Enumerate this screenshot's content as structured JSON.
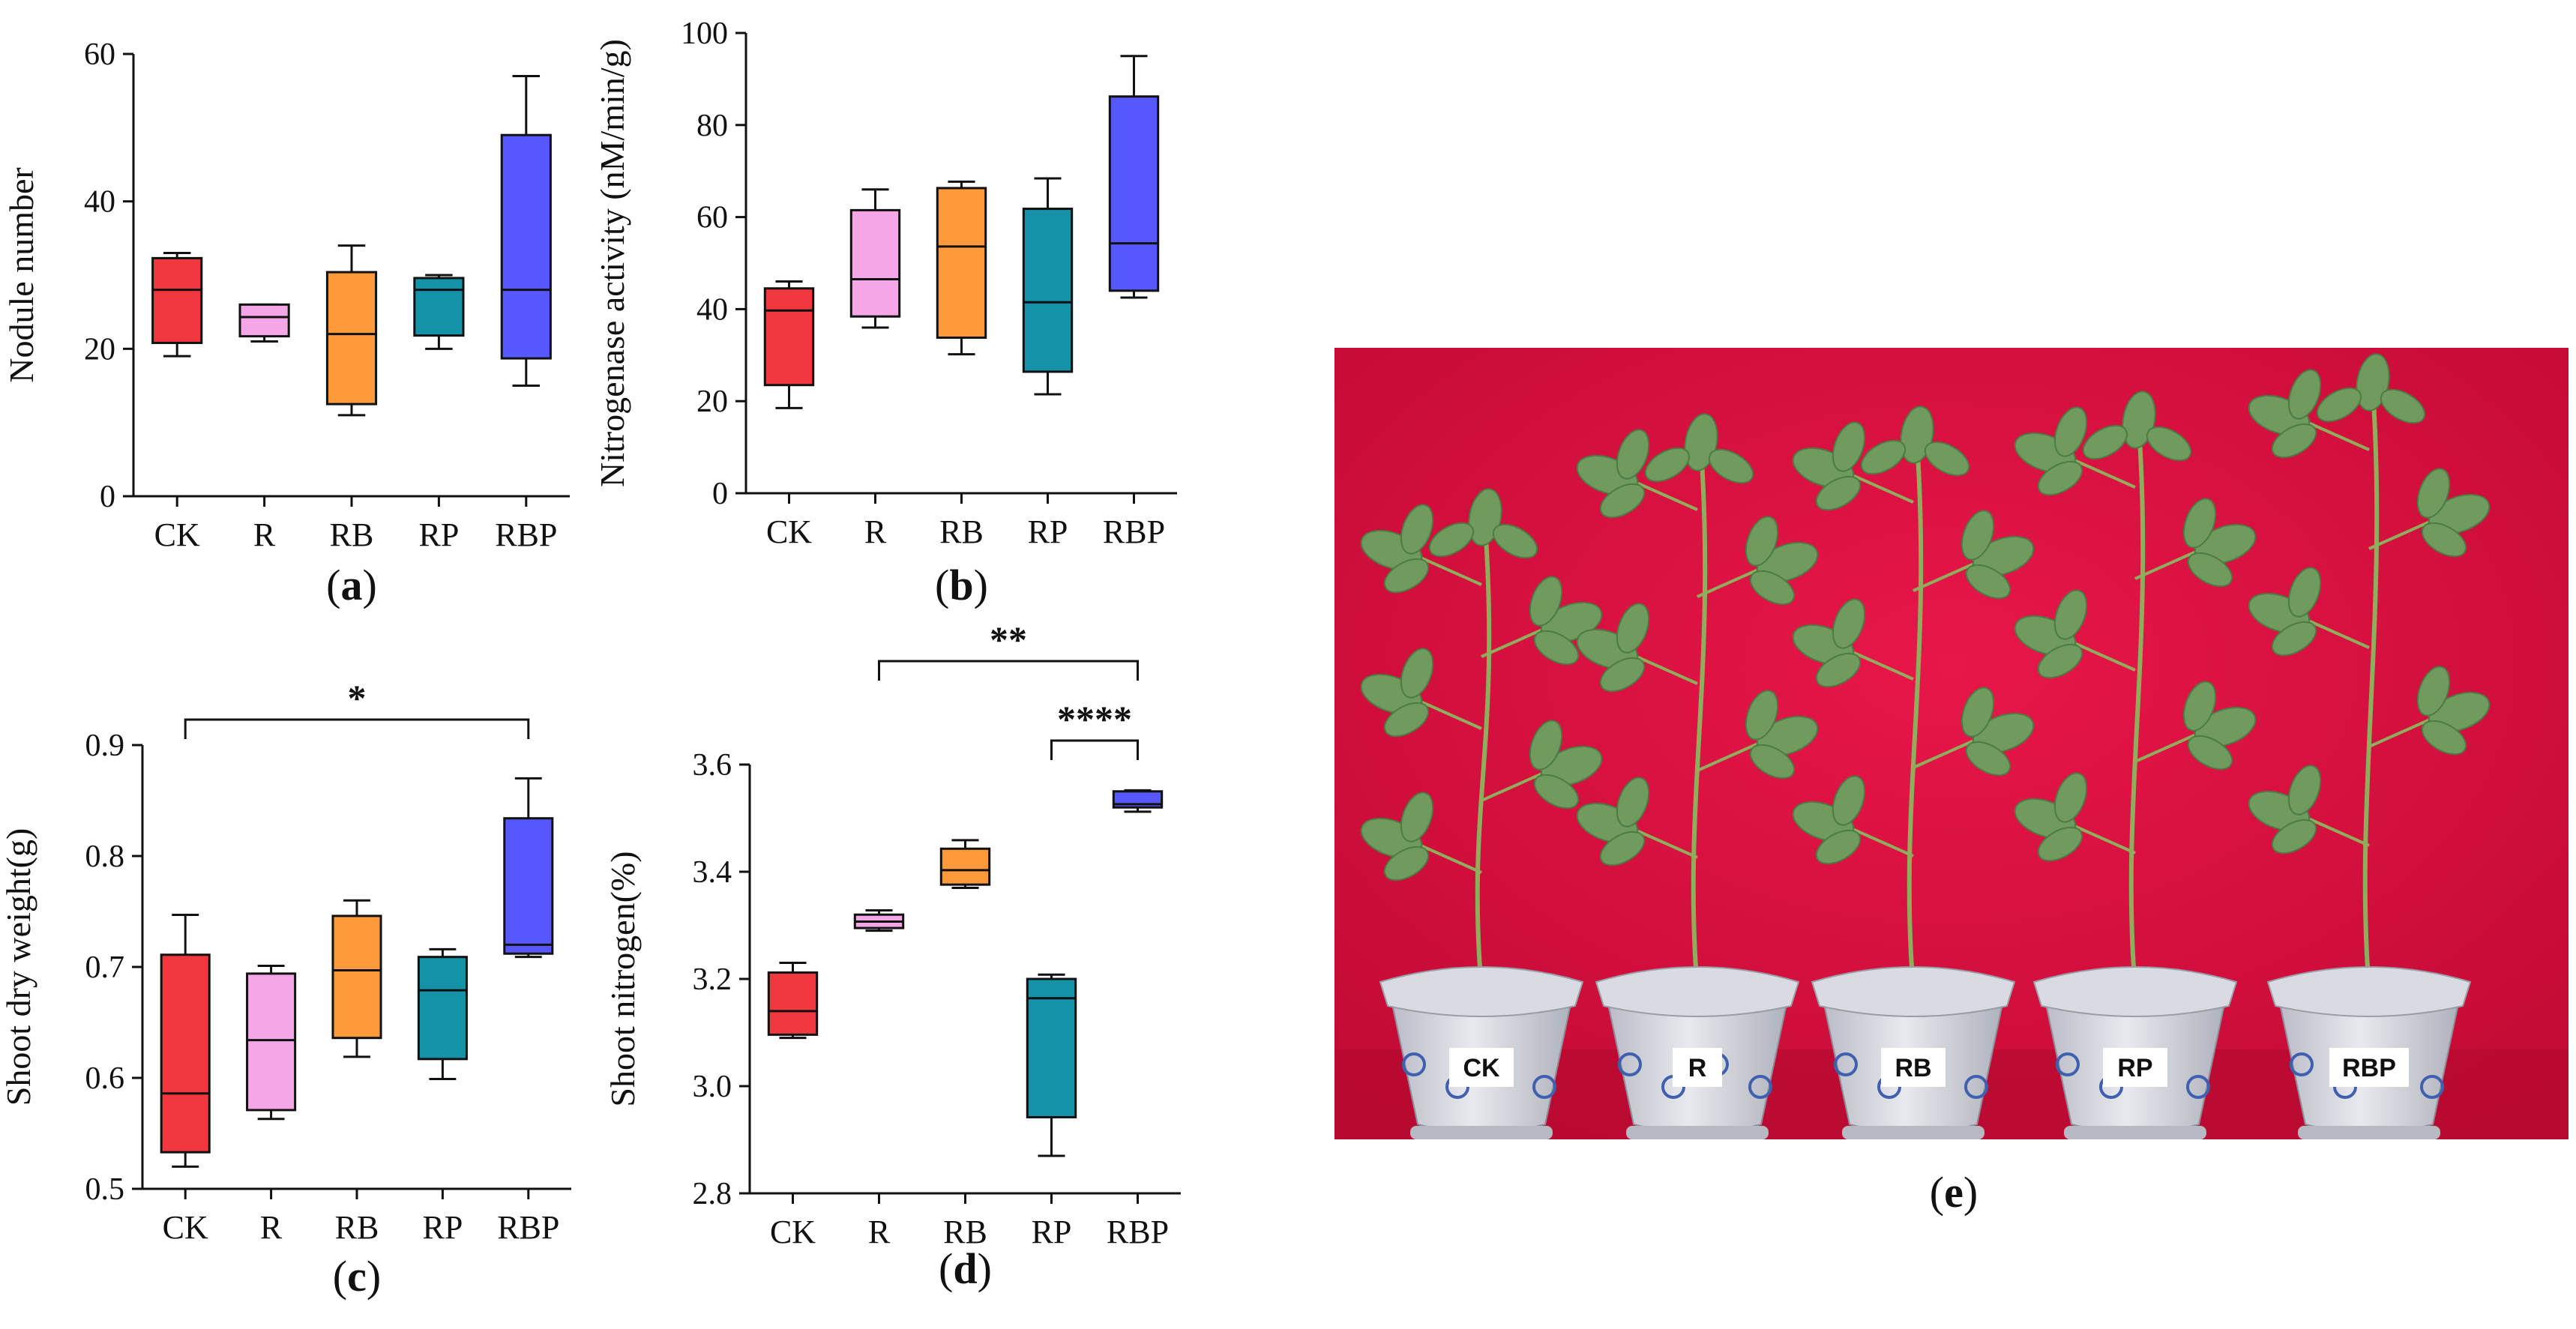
{
  "colors": {
    "CK": "#f2383f",
    "R": "#f4a6e6",
    "RB": "#ff9a3c",
    "RP": "#1592a8",
    "RBP": "#5757ff",
    "backdrop": "#d60c3a"
  },
  "chart_data": [
    {
      "panel_letter": "a",
      "type": "box",
      "ylabel": "Nodule number",
      "ylim": [
        0,
        60
      ],
      "yticks": [
        "0",
        "20",
        "40",
        "60"
      ],
      "categories": [
        "CK",
        "R",
        "RB",
        "RP",
        "RBP"
      ],
      "boxes": [
        {
          "min": 19,
          "q1": 20.8,
          "median": 28,
          "q3": 32.3,
          "max": 33
        },
        {
          "min": 21,
          "q1": 21.7,
          "median": 24.3,
          "q3": 26,
          "max": 26
        },
        {
          "min": 11,
          "q1": 12.5,
          "median": 22,
          "q3": 30.4,
          "max": 34
        },
        {
          "min": 20,
          "q1": 21.8,
          "median": 28,
          "q3": 29.6,
          "max": 30
        },
        {
          "min": 15,
          "q1": 18.7,
          "median": 28,
          "q3": 49,
          "max": 57
        }
      ],
      "significance": []
    },
    {
      "panel_letter": "b",
      "type": "box",
      "ylabel": "Nitrogenase activity (nM/min/g)",
      "ylim": [
        0,
        100
      ],
      "yticks": [
        "0",
        "20",
        "40",
        "60",
        "80",
        "100"
      ],
      "categories": [
        "CK",
        "R",
        "RB",
        "RP",
        "RBP"
      ],
      "boxes": [
        {
          "min": 18.5,
          "q1": 23.5,
          "median": 39.7,
          "q3": 44.5,
          "max": 46
        },
        {
          "min": 36,
          "q1": 38.4,
          "median": 46.5,
          "q3": 61.5,
          "max": 66
        },
        {
          "min": 30.2,
          "q1": 33.8,
          "median": 53.6,
          "q3": 66.3,
          "max": 67.7
        },
        {
          "min": 21.5,
          "q1": 26.4,
          "median": 41.5,
          "q3": 61.8,
          "max": 68.4
        },
        {
          "min": 42.5,
          "q1": 44,
          "median": 54.3,
          "q3": 86.2,
          "max": 95
        }
      ],
      "significance": []
    },
    {
      "panel_letter": "c",
      "type": "box",
      "ylabel": "Shoot dry weight(g)",
      "ylim": [
        0.5,
        0.9
      ],
      "yticks": [
        "0.5",
        "0.6",
        "0.7",
        "0.8",
        "0.9"
      ],
      "categories": [
        "CK",
        "R",
        "RB",
        "RP",
        "RBP"
      ],
      "boxes": [
        {
          "min": 0.52,
          "q1": 0.533,
          "median": 0.586,
          "q3": 0.711,
          "max": 0.747
        },
        {
          "min": 0.563,
          "q1": 0.571,
          "median": 0.634,
          "q3": 0.694,
          "max": 0.701
        },
        {
          "min": 0.619,
          "q1": 0.636,
          "median": 0.697,
          "q3": 0.746,
          "max": 0.76
        },
        {
          "min": 0.599,
          "q1": 0.617,
          "median": 0.679,
          "q3": 0.709,
          "max": 0.716
        },
        {
          "min": 0.709,
          "q1": 0.712,
          "median": 0.72,
          "q3": 0.834,
          "max": 0.87
        }
      ],
      "significance": [
        {
          "from": "CK",
          "to": "RBP",
          "label": "*"
        }
      ]
    },
    {
      "panel_letter": "d",
      "type": "box",
      "ylabel": "Shoot nitrogen(%)",
      "ylim": [
        2.8,
        3.6
      ],
      "yticks": [
        "2.8",
        "3.0",
        "3.2",
        "3.4",
        "3.6"
      ],
      "categories": [
        "CK",
        "R",
        "RB",
        "RP",
        "RBP"
      ],
      "boxes": [
        {
          "min": 3.09,
          "q1": 3.096,
          "median": 3.14,
          "q3": 3.212,
          "max": 3.23
        },
        {
          "min": 3.29,
          "q1": 3.295,
          "median": 3.307,
          "q3": 3.32,
          "max": 3.328
        },
        {
          "min": 3.37,
          "q1": 3.376,
          "median": 3.403,
          "q3": 3.443,
          "max": 3.459
        },
        {
          "min": 2.87,
          "q1": 2.942,
          "median": 3.164,
          "q3": 3.2,
          "max": 3.208
        },
        {
          "min": 3.512,
          "q1": 3.52,
          "median": 3.526,
          "q3": 3.55,
          "max": 3.552
        }
      ],
      "significance": [
        {
          "from": "R",
          "to": "RBP",
          "label": "**"
        },
        {
          "from": "RP",
          "to": "RBP",
          "label": "****"
        }
      ]
    }
  ],
  "photo": {
    "panel_letter": "e",
    "pot_labels": [
      "CK",
      "R",
      "RB",
      "RP",
      "RBP"
    ]
  }
}
